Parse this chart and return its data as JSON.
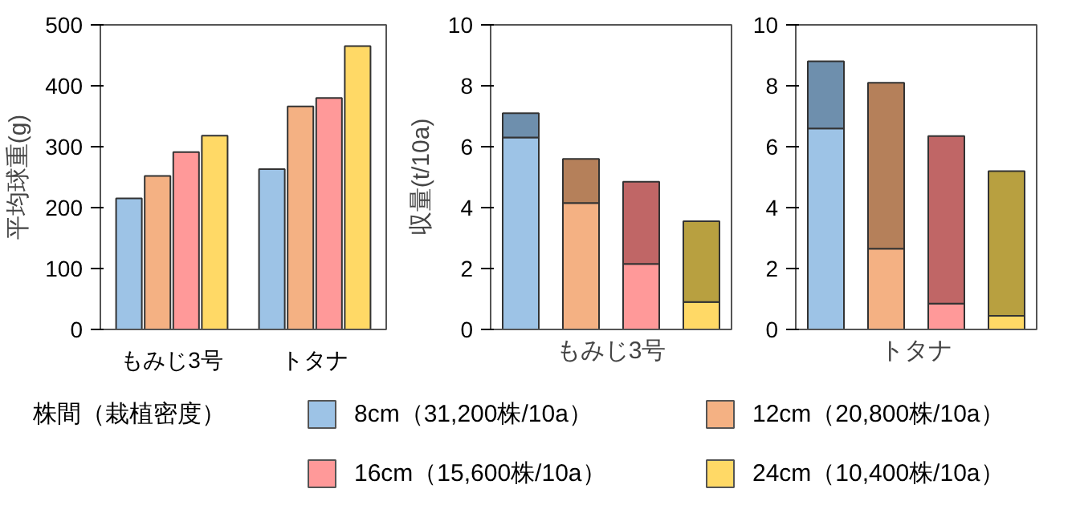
{
  "chart_data": [
    {
      "type": "bar",
      "categories": [
        "もみじ3号",
        "トタナ"
      ],
      "ylabel": "平均球重(g)",
      "ylim": [
        0,
        500
      ],
      "yticks": [
        0,
        100,
        200,
        300,
        400,
        500
      ],
      "grid": false,
      "legend": "bottom",
      "legend_title": "株間（栽植密度）",
      "series": [
        {
          "name": "8cm（31,200株/10a）",
          "color": "#9dc3e6",
          "values": [
            215,
            263
          ]
        },
        {
          "name": "12cm（20,800株/10a）",
          "color": "#f4b183",
          "values": [
            252,
            366
          ]
        },
        {
          "name": "16cm（15,600株/10a）",
          "color": "#ff9999",
          "values": [
            291,
            380
          ]
        },
        {
          "name": "24cm（10,400株/10a）",
          "color": "#ffd966",
          "values": [
            318,
            465
          ]
        }
      ]
    },
    {
      "type": "bar",
      "stacked": true,
      "categories": [
        null,
        null,
        null,
        null
      ],
      "xlabel": "もみじ3号",
      "ylabel": "収量(t/10a)",
      "ylim": [
        0,
        10
      ],
      "yticks": [
        0,
        2,
        4,
        6,
        8,
        10
      ],
      "grid": false,
      "series": [
        {
          "colors": [
            "#9dc3e6",
            "#f4b183",
            "#ff9999",
            "#ffd966"
          ],
          "values": [
            6.3,
            4.15,
            2.15,
            0.9
          ]
        },
        {
          "colors": [
            "#6e8fad",
            "#b5805a",
            "#c06666",
            "#b8a040"
          ],
          "values": [
            0.8,
            1.45,
            2.7,
            2.65
          ]
        }
      ]
    },
    {
      "type": "bar",
      "stacked": true,
      "categories": [
        null,
        null,
        null,
        null
      ],
      "xlabel": "トタナ",
      "ylim": [
        0,
        10
      ],
      "yticks": [
        0,
        2,
        4,
        6,
        8,
        10
      ],
      "grid": false,
      "series": [
        {
          "colors": [
            "#9dc3e6",
            "#f4b183",
            "#ff9999",
            "#ffd966"
          ],
          "values": [
            6.6,
            2.65,
            0.85,
            0.45
          ]
        },
        {
          "colors": [
            "#6e8fad",
            "#b5805a",
            "#c06666",
            "#b8a040"
          ],
          "values": [
            2.2,
            5.45,
            5.5,
            4.75
          ]
        }
      ]
    }
  ]
}
